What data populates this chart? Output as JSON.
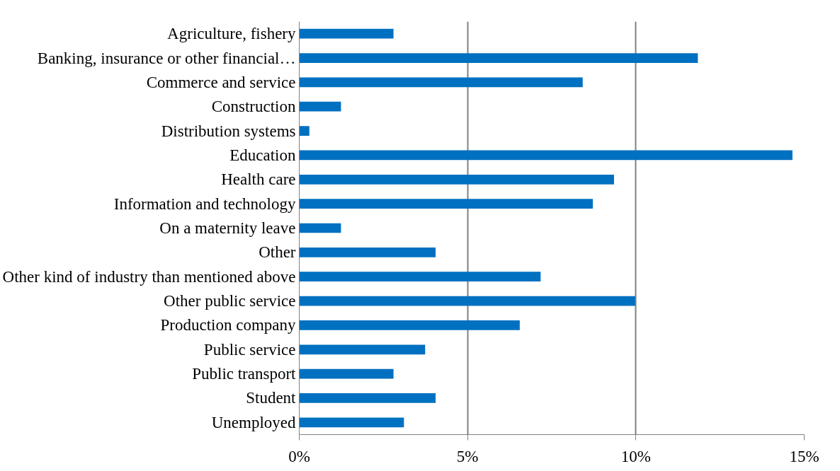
{
  "chart_data": {
    "type": "bar",
    "orientation": "horizontal",
    "categories": [
      "Agriculture, fishery",
      "Banking, insurance or other financial…",
      "Commerce and service",
      "Construction",
      "Distribution systems",
      "Education",
      "Health care",
      "Information and technology",
      "On a maternity leave",
      "Other",
      "Other kind of industry than mentioned above",
      "Other public service",
      "Production company",
      "Public service",
      "Public transport",
      "Student",
      "Unemployed"
    ],
    "values": [
      2.8,
      11.84,
      8.42,
      1.24,
      0.3,
      14.65,
      9.35,
      8.72,
      1.24,
      4.05,
      7.17,
      9.98,
      6.55,
      3.74,
      2.8,
      4.05,
      3.11
    ],
    "color": "#0070c0",
    "xlim": [
      0,
      15
    ],
    "xticks": [
      {
        "value": 0,
        "label": "0%"
      },
      {
        "value": 5,
        "label": "5%"
      },
      {
        "value": 10,
        "label": "10%"
      },
      {
        "value": 15,
        "label": "15%"
      }
    ],
    "grid": "x"
  }
}
